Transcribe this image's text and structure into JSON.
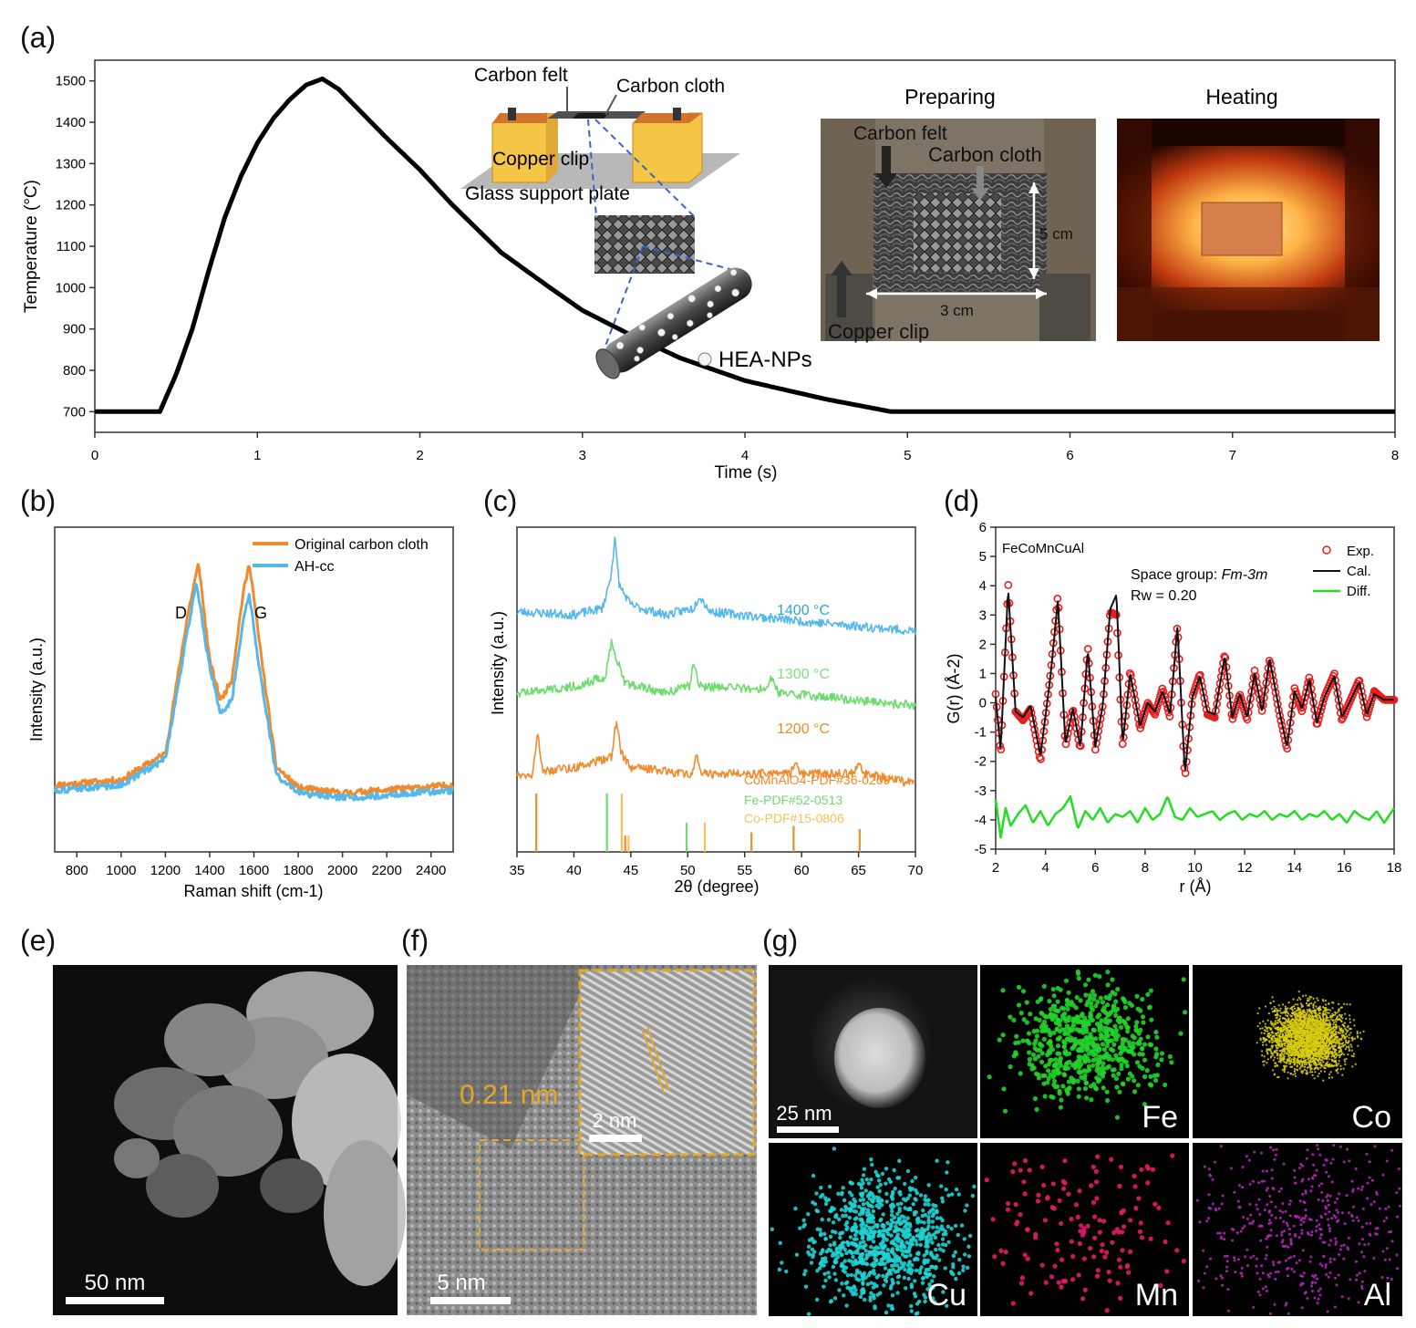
{
  "panel_labels": {
    "a": "(a)",
    "b": "(b)",
    "c": "(c)",
    "d": "(d)",
    "e": "(e)",
    "f": "(f)",
    "g": "(g)"
  },
  "panel_a": {
    "inset_text": {
      "carbon_felt": "Carbon felt",
      "carbon_cloth": "Carbon cloth",
      "copper_clip": "Copper clip",
      "glass_support": "Glass support plate",
      "hea_nps": "HEA-NPs",
      "preparing": "Preparing",
      "heating": "Heating",
      "photo_carbon_felt": "Carbon felt",
      "photo_carbon_cloth": "Carbon cloth",
      "photo_copper_clip": "Copper clip",
      "dim_5cm": "5 cm",
      "dim_3cm": "3 cm"
    }
  },
  "panel_b": {
    "peak_d": "D",
    "peak_g": "G"
  },
  "panel_c": {
    "curve_labels": [
      "1400 °C",
      "1300 °C",
      "1200 °C"
    ],
    "ref_labels": [
      "CoMnAlO4-PDF#36-0269",
      "Fe-PDF#52-0513",
      "Co-PDF#15-0806"
    ]
  },
  "panel_d": {
    "sample": "FeCoMnCuAl",
    "space_group_prefix": "Space group: ",
    "space_group": "Fm-3m",
    "rw": "Rw = 0.20"
  },
  "panel_e": {
    "scale": "50 nm"
  },
  "panel_f": {
    "lattice": "0.21 nm",
    "scale_inset": "2 nm",
    "scale": "5 nm"
  },
  "panel_g": {
    "scale": "25 nm",
    "elements": [
      "Fe",
      "Co",
      "Cu",
      "Mn",
      "Al"
    ]
  },
  "colors": {
    "orange": "#F08A2C",
    "blue": "#55B8EC",
    "green": "#6FDB6F",
    "red": "#E81E1E",
    "lime": "#22DD22",
    "fe": "#22D22A",
    "co": "#D8CC10",
    "cu": "#1ED3D3",
    "mn": "#E8186C",
    "al": "#B323B8",
    "cyan_label": "#2AA9C9",
    "scale_yellow": "#E3A82A"
  },
  "chart_data": [
    {
      "panel": "a",
      "type": "line",
      "xlabel": "Time (s)",
      "ylabel": "Temperature (°C)",
      "xlim": [
        0,
        8
      ],
      "ylim": [
        650,
        1550
      ],
      "xticks": [
        0,
        1,
        2,
        3,
        4,
        5,
        6,
        7,
        8
      ],
      "yticks": [
        700,
        800,
        900,
        1000,
        1100,
        1200,
        1300,
        1400,
        1500
      ],
      "series": [
        {
          "x": [
            0,
            0.4,
            0.5,
            0.6,
            0.7,
            0.8,
            0.9,
            1.0,
            1.1,
            1.2,
            1.3,
            1.4,
            1.5,
            1.6,
            1.8,
            2.0,
            2.2,
            2.5,
            2.8,
            3.0,
            3.3,
            3.6,
            4.0,
            4.5,
            4.9,
            5.0,
            6.0,
            7.0,
            8.0
          ],
          "y": [
            700,
            700,
            790,
            900,
            1040,
            1170,
            1270,
            1350,
            1410,
            1455,
            1490,
            1505,
            1480,
            1440,
            1360,
            1285,
            1200,
            1085,
            1000,
            945,
            885,
            830,
            775,
            730,
            700,
            700,
            700,
            700,
            700
          ]
        }
      ]
    },
    {
      "panel": "b",
      "type": "line",
      "xlabel": "Raman shift (cm-1)",
      "ylabel": "Intensity (a.u.)",
      "xlim": [
        700,
        2500
      ],
      "xticks": [
        800,
        1000,
        1200,
        1400,
        1600,
        1800,
        2000,
        2200,
        2400
      ],
      "legend": "top-right",
      "series": [
        {
          "name": "Original carbon cloth",
          "color": "#F08A2C",
          "x": [
            700,
            1000,
            1200,
            1300,
            1350,
            1400,
            1450,
            1500,
            1550,
            1580,
            1620,
            1700,
            1800,
            2000,
            2500
          ],
          "y": [
            0.08,
            0.1,
            0.2,
            0.72,
            0.92,
            0.55,
            0.4,
            0.48,
            0.8,
            0.92,
            0.65,
            0.15,
            0.07,
            0.05,
            0.08
          ]
        },
        {
          "name": "AH-cc",
          "color": "#55B8EC",
          "x": [
            700,
            1000,
            1200,
            1300,
            1340,
            1400,
            1450,
            1500,
            1550,
            1580,
            1620,
            1700,
            1800,
            2000,
            2500
          ],
          "y": [
            0.06,
            0.08,
            0.18,
            0.66,
            0.85,
            0.52,
            0.35,
            0.4,
            0.7,
            0.8,
            0.55,
            0.12,
            0.05,
            0.03,
            0.06
          ]
        }
      ]
    },
    {
      "panel": "c",
      "type": "line",
      "xlabel": "2θ (degree)",
      "ylabel": "Intensity (a.u.)",
      "xlim": [
        35,
        70
      ],
      "xticks": [
        35,
        40,
        45,
        50,
        55,
        60,
        65,
        70
      ],
      "series": [
        {
          "name": "1400 °C",
          "color": "#55B8EC",
          "offset": 0.74,
          "x": [
            35,
            40,
            42.5,
            43.2,
            43.6,
            44.0,
            45,
            48,
            50.5,
            51.0,
            52,
            60,
            70
          ],
          "y": [
            0.0,
            -0.01,
            0.01,
            0.1,
            0.22,
            0.08,
            0.02,
            -0.01,
            0.01,
            0.05,
            0.0,
            -0.03,
            -0.06
          ]
        },
        {
          "name": "1300 °C",
          "color": "#6FDB6F",
          "offset": 0.49,
          "x": [
            35,
            40,
            42.8,
            43.3,
            43.8,
            44.5,
            48,
            50.2,
            50.5,
            51,
            57,
            57.4,
            58,
            70
          ],
          "y": [
            0.0,
            0.02,
            0.05,
            0.16,
            0.1,
            0.03,
            0.0,
            0.02,
            0.1,
            0.02,
            0.01,
            0.05,
            0.0,
            -0.04
          ]
        },
        {
          "name": "1200 °C",
          "color": "#F08A2C",
          "offset": 0.24,
          "x": [
            35,
            36.3,
            36.8,
            37.3,
            40,
            43.3,
            43.7,
            44.2,
            45,
            50.4,
            50.7,
            51.2,
            59,
            59.5,
            60,
            64.5,
            65,
            65.5,
            70
          ],
          "y": [
            0.0,
            0.0,
            0.12,
            0.01,
            0.02,
            0.05,
            0.16,
            0.06,
            0.02,
            0.0,
            0.06,
            0.0,
            0.0,
            0.03,
            0.0,
            0.0,
            0.04,
            0.0,
            -0.03
          ]
        }
      ],
      "reference_sticks": [
        {
          "name": "CoMnAlO4-PDF#36-0269",
          "color": "#F08A2C",
          "x": [
            36.7,
            44.5,
            55.6,
            59.3,
            65.1
          ],
          "h": [
            0.18,
            0.05,
            0.06,
            0.08,
            0.07
          ]
        },
        {
          "name": "Fe-PDF#52-0513",
          "color": "#6FDB6F",
          "x": [
            42.9,
            49.9
          ],
          "h": [
            0.18,
            0.09
          ]
        },
        {
          "name": "Co-PDF#15-0806",
          "color": "#F5C25A",
          "x": [
            44.2,
            44.8,
            51.5
          ],
          "h": [
            0.18,
            0.05,
            0.09
          ]
        }
      ]
    },
    {
      "panel": "d",
      "type": "line",
      "xlabel": "r (Å)",
      "ylabel": "G(r) (Å-2)",
      "xlim": [
        2,
        18
      ],
      "ylim": [
        -5,
        6
      ],
      "xticks": [
        2,
        4,
        6,
        8,
        10,
        12,
        14,
        16,
        18
      ],
      "yticks": [
        -5,
        -4,
        -3,
        -2,
        -1,
        0,
        1,
        2,
        3,
        4,
        5,
        6
      ],
      "legend": "top-right",
      "series": [
        {
          "name": "Exp.",
          "color": "#E81E1E",
          "marker": "circle",
          "x": [
            2.0,
            2.2,
            2.5,
            2.8,
            3.1,
            3.4,
            3.8,
            4.2,
            4.5,
            4.8,
            5.1,
            5.4,
            5.7,
            6.0,
            6.3,
            6.6,
            6.85,
            7.1,
            7.4,
            7.8,
            8.1,
            8.4,
            8.7,
            9.0,
            9.3,
            9.6,
            9.9,
            10.2,
            10.5,
            10.8,
            11.2,
            11.5,
            11.8,
            12.1,
            12.4,
            12.7,
            13.0,
            13.4,
            13.7,
            14.0,
            14.3,
            14.6,
            14.9,
            15.2,
            15.6,
            15.9,
            16.2,
            16.6,
            16.9,
            17.2,
            17.6,
            18.0
          ],
          "y": [
            0.3,
            -1.8,
            4.1,
            -0.3,
            -0.6,
            -0.2,
            -2.0,
            1.0,
            3.7,
            -1.5,
            -0.2,
            -1.6,
            1.9,
            -1.6,
            -0.1,
            3.1,
            3.0,
            -1.5,
            1.1,
            -0.9,
            0.0,
            -0.4,
            0.5,
            -0.5,
            2.7,
            -2.6,
            0.2,
            1.0,
            -0.4,
            -0.5,
            1.7,
            -0.6,
            0.3,
            -0.6,
            1.1,
            -0.3,
            1.5,
            -0.4,
            -1.6,
            0.5,
            -0.3,
            0.9,
            -0.8,
            0.2,
            1.0,
            -0.6,
            0.0,
            0.8,
            -0.5,
            0.4,
            0.1,
            0.1
          ]
        },
        {
          "name": "Cal.",
          "color": "#111111",
          "x": [
            2.0,
            2.2,
            2.5,
            2.8,
            3.1,
            3.4,
            3.8,
            4.2,
            4.5,
            4.8,
            5.1,
            5.4,
            5.7,
            6.0,
            6.3,
            6.6,
            6.85,
            7.1,
            7.4,
            7.8,
            8.1,
            8.4,
            8.7,
            9.0,
            9.3,
            9.6,
            9.9,
            10.2,
            10.5,
            10.8,
            11.2,
            11.5,
            11.8,
            12.1,
            12.4,
            12.7,
            13.0,
            13.4,
            13.7,
            14.0,
            14.3,
            14.6,
            14.9,
            15.2,
            15.6,
            15.9,
            16.2,
            16.6,
            16.9,
            17.2,
            17.6,
            18.0
          ],
          "y": [
            0.2,
            -1.6,
            3.9,
            -0.3,
            -0.5,
            -0.1,
            -1.8,
            0.9,
            3.5,
            -1.4,
            -0.2,
            -1.5,
            1.8,
            -1.5,
            -0.1,
            3.2,
            3.7,
            -1.4,
            1.0,
            -0.8,
            0.0,
            -0.3,
            0.4,
            -0.4,
            2.6,
            -2.4,
            0.2,
            0.9,
            -0.3,
            -0.4,
            1.6,
            -0.5,
            0.3,
            -0.5,
            1.0,
            -0.3,
            1.5,
            -0.3,
            -1.5,
            0.4,
            -0.2,
            0.8,
            -0.7,
            0.2,
            0.9,
            -0.5,
            0.0,
            0.7,
            -0.4,
            0.3,
            0.1,
            0.1
          ]
        },
        {
          "name": "Diff.",
          "color": "#22DD22",
          "x": [
            2.0,
            2.2,
            2.4,
            2.6,
            2.9,
            3.2,
            3.5,
            3.8,
            4.1,
            4.4,
            4.7,
            5.0,
            5.3,
            5.6,
            5.9,
            6.2,
            6.5,
            6.8,
            7.1,
            7.4,
            7.7,
            8.0,
            8.3,
            8.6,
            8.9,
            9.2,
            9.5,
            9.8,
            10.1,
            10.4,
            10.7,
            11.0,
            11.3,
            11.6,
            11.9,
            12.2,
            12.5,
            12.8,
            13.1,
            13.4,
            13.7,
            14.0,
            14.3,
            14.6,
            14.9,
            15.2,
            15.5,
            15.8,
            16.1,
            16.4,
            16.7,
            17.0,
            17.3,
            17.6,
            18.0
          ],
          "y": [
            -3.3,
            -4.6,
            -3.6,
            -4.2,
            -3.8,
            -3.5,
            -4.1,
            -3.7,
            -4.2,
            -3.8,
            -3.6,
            -3.2,
            -4.3,
            -3.7,
            -4.0,
            -3.6,
            -4.1,
            -3.8,
            -3.9,
            -3.7,
            -4.1,
            -3.6,
            -4.0,
            -3.8,
            -3.2,
            -3.9,
            -4.0,
            -3.6,
            -3.9,
            -3.8,
            -3.7,
            -4.0,
            -3.8,
            -3.7,
            -4.0,
            -3.8,
            -3.9,
            -3.7,
            -4.0,
            -3.8,
            -3.9,
            -3.7,
            -4.0,
            -3.8,
            -3.9,
            -3.7,
            -4.0,
            -3.8,
            -4.1,
            -3.7,
            -3.9,
            -4.0,
            -3.7,
            -4.1,
            -3.6
          ]
        }
      ]
    }
  ]
}
